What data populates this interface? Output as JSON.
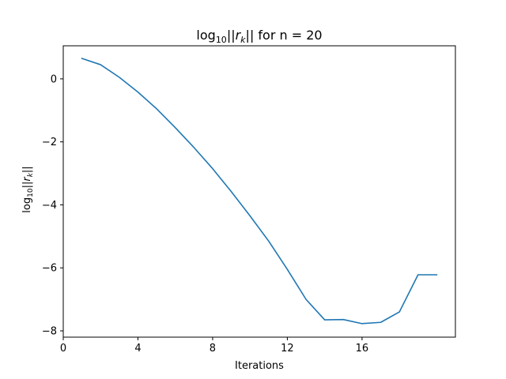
{
  "chart_data": {
    "type": "line",
    "title": {
      "prefix": "log",
      "sub": "10",
      "pipes_open": "||",
      "var": "r",
      "var_sub": "k",
      "pipes_close": "||",
      "suffix": " for n = 20"
    },
    "xlabel": "Iterations",
    "ylabel": {
      "prefix": "log",
      "sub": "10",
      "pipes_open": "||",
      "var": "r",
      "var_sub": "k",
      "pipes_close": "||"
    },
    "xlim": [
      0,
      21
    ],
    "ylim": [
      -8.2,
      1.05
    ],
    "xticks": [
      0,
      4,
      8,
      12,
      16
    ],
    "xtick_labels": [
      "0",
      "4",
      "8",
      "12",
      "16"
    ],
    "yticks": [
      0,
      -2,
      -4,
      -6,
      -8
    ],
    "ytick_labels": [
      "0",
      "−2",
      "−4",
      "−6",
      "−8"
    ],
    "grid": false,
    "series": [
      {
        "color": "#1f77b4",
        "x": [
          1,
          2,
          3,
          4,
          5,
          6,
          7,
          8,
          9,
          10,
          11,
          12,
          13,
          14,
          15,
          16,
          17,
          18,
          19,
          20
        ],
        "y": [
          0.65,
          0.45,
          0.05,
          -0.42,
          -0.95,
          -1.55,
          -2.18,
          -2.85,
          -3.58,
          -4.35,
          -5.15,
          -6.05,
          -7.0,
          -7.65,
          -7.64,
          -7.77,
          -7.73,
          -7.4,
          -6.22,
          -6.22
        ]
      }
    ]
  }
}
